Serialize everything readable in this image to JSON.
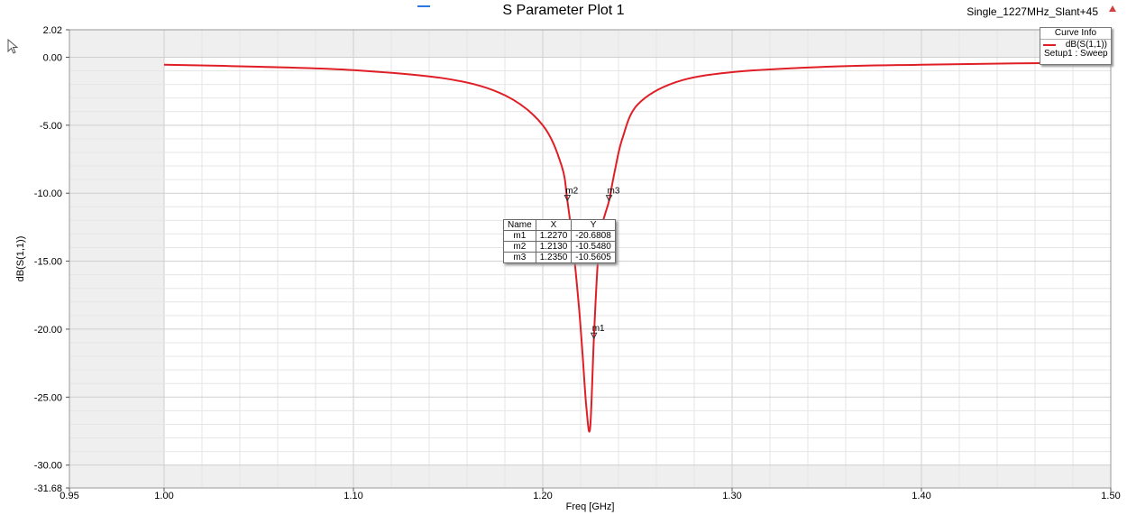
{
  "title": "S Parameter Plot 1",
  "project_label": "Single_1227MHz_Slant+45",
  "legend": {
    "header": "Curve Info",
    "trace": "dB(S(1,1))",
    "setup": "Setup1 : Sweep",
    "color": "#e01e26"
  },
  "marker_table": {
    "headers": [
      "Name",
      "X",
      "Y"
    ],
    "rows": [
      [
        "m1",
        "1.2270",
        "-20.6808"
      ],
      [
        "m2",
        "1.2130",
        "-10.5480"
      ],
      [
        "m3",
        "1.2350",
        "-10.5605"
      ]
    ]
  },
  "chart_data": {
    "type": "line",
    "xlabel": "Freq [GHz]",
    "ylabel": "dB(S(1,1))",
    "xlim": [
      0.95,
      1.5
    ],
    "ylim": [
      -31.68,
      2.02
    ],
    "x_ticks": [
      {
        "value": 0.95,
        "label": "0.95"
      },
      {
        "value": 1.0,
        "label": "1.00"
      },
      {
        "value": 1.1,
        "label": "1.10"
      },
      {
        "value": 1.2,
        "label": "1.20"
      },
      {
        "value": 1.3,
        "label": "1.30"
      },
      {
        "value": 1.4,
        "label": "1.40"
      },
      {
        "value": 1.5,
        "label": "1.50"
      }
    ],
    "y_ticks": [
      {
        "value": 2.02,
        "label": "2.02"
      },
      {
        "value": 0,
        "label": "0.00"
      },
      {
        "value": -5,
        "label": "-5.00"
      },
      {
        "value": -10,
        "label": "-10.00"
      },
      {
        "value": -15,
        "label": "-15.00"
      },
      {
        "value": -20,
        "label": "-20.00"
      },
      {
        "value": -25,
        "label": "-25.00"
      },
      {
        "value": -30,
        "label": "-30.00"
      },
      {
        "value": -31.68,
        "label": "-31.68"
      }
    ],
    "sweep_range": [
      1.0,
      1.5
    ],
    "grid": true,
    "series": [
      {
        "name": "dB(S(1,1))",
        "color": "#e01e26",
        "x": [
          1.0,
          1.05,
          1.1,
          1.15,
          1.18,
          1.2,
          1.21,
          1.213,
          1.216,
          1.219,
          1.221,
          1.223,
          1.225,
          1.227,
          1.229,
          1.231,
          1.233,
          1.235,
          1.238,
          1.242,
          1.25,
          1.27,
          1.3,
          1.35,
          1.4,
          1.45,
          1.5
        ],
        "y": [
          -0.55,
          -0.7,
          -0.95,
          -1.6,
          -2.8,
          -5.0,
          -8.0,
          -10.55,
          -13.9,
          -18.2,
          -21.8,
          -25.7,
          -27.3,
          -20.68,
          -15.2,
          -12.6,
          -11.5,
          -10.56,
          -8.4,
          -6.0,
          -3.5,
          -1.85,
          -1.1,
          -0.7,
          -0.55,
          -0.45,
          -0.4
        ]
      }
    ],
    "markers": [
      {
        "name": "m1",
        "x": 1.227,
        "y": -20.6808
      },
      {
        "name": "m2",
        "x": 1.213,
        "y": -10.548
      },
      {
        "name": "m3",
        "x": 1.235,
        "y": -10.5605
      }
    ]
  }
}
